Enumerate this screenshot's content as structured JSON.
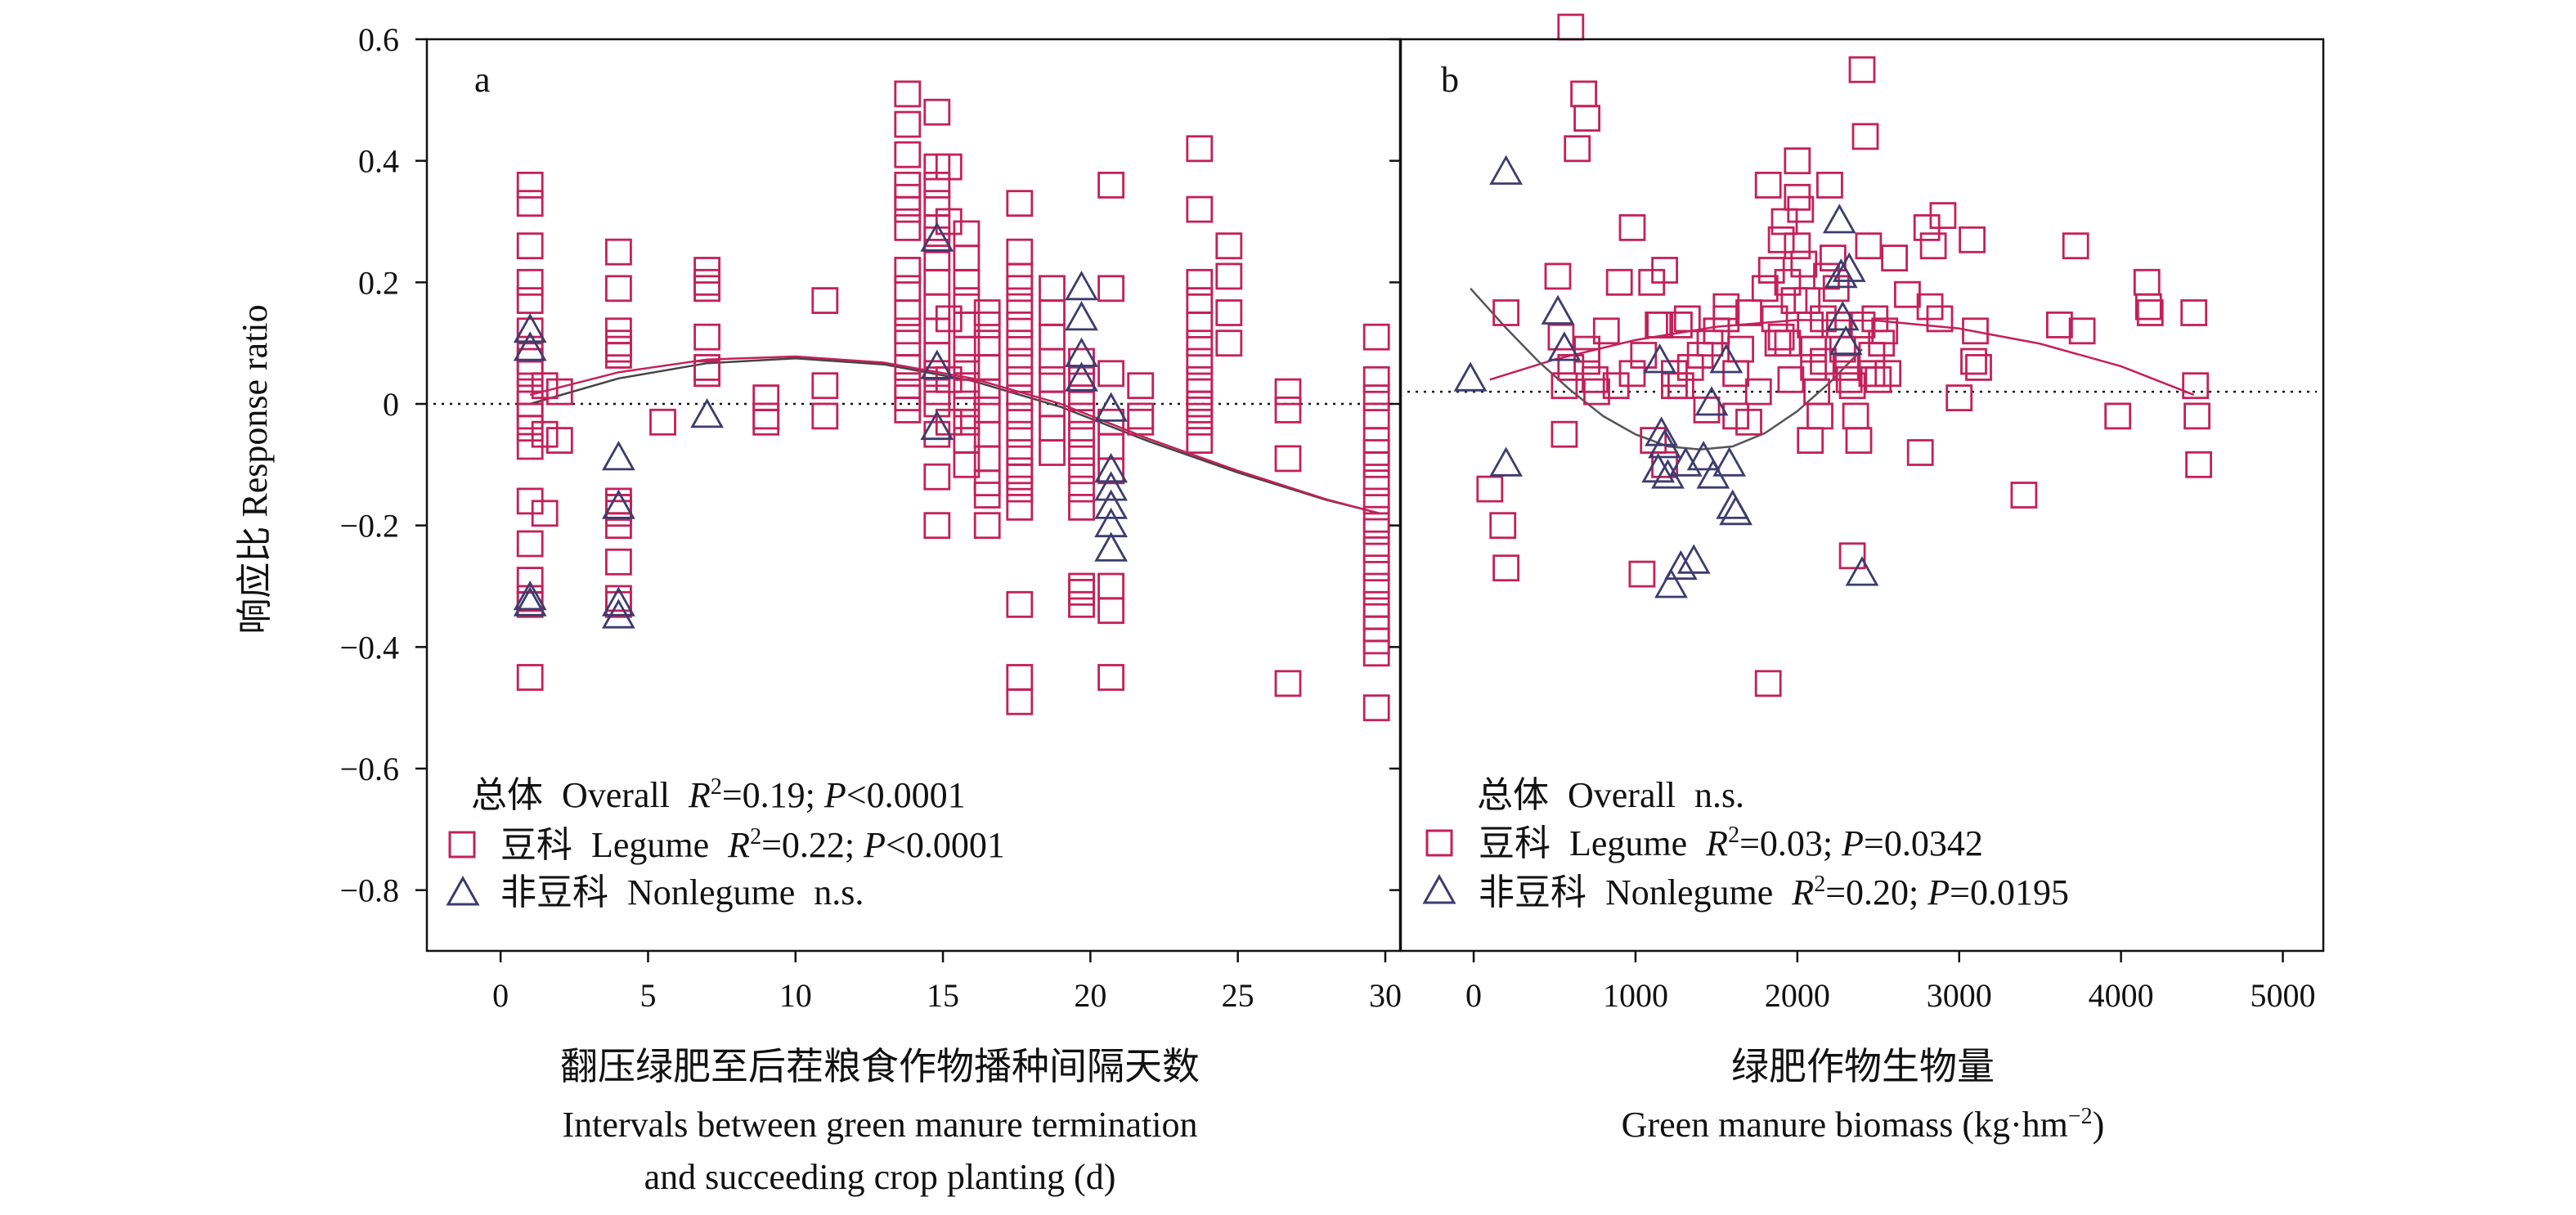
{
  "chart_data": [
    {
      "type": "scatter",
      "panel_label": "a",
      "xlabel_cn": "翻压绿肥至后茬粮食作物播种间隔天数",
      "xlabel_en_1": "Intervals between green manure termination",
      "xlabel_en_2": "and succeeding crop planting (d)",
      "ylabel": "响应比 Response ratio",
      "xlim": [
        -2.5,
        30.5
      ],
      "ylim": [
        -0.9,
        0.6
      ],
      "xticks": [
        0,
        5,
        10,
        15,
        20,
        25,
        30
      ],
      "yticks": [
        -0.8,
        -0.6,
        -0.4,
        -0.2,
        0,
        0.2,
        0.4,
        0.6
      ],
      "xtick_labels": [
        "0",
        "5",
        "10",
        "15",
        "20",
        "25",
        "30"
      ],
      "ytick_labels": [
        "−0.8",
        "−0.6",
        "−0.4",
        "−0.2",
        "0",
        "0.2",
        "0.4",
        "0.6"
      ],
      "grid": false,
      "reference_line_y": 0,
      "legend": {
        "overall": {
          "cn": "总体",
          "en": "Overall",
          "stat_r2": "=0.19; ",
          "stat_p": "<0.0001"
        },
        "legume": {
          "cn": "豆科",
          "en": "Legume",
          "stat_r2": "=0.22; ",
          "stat_p": "<0.0001"
        },
        "nonlegume": {
          "cn": "非豆科",
          "en": "Nonlegume",
          "stat_text": "n.s."
        }
      },
      "fits": {
        "overall": {
          "x": [
            1,
            4,
            7,
            10,
            13,
            16,
            19,
            22,
            25,
            28,
            29.8
          ],
          "y": [
            0.0,
            0.042,
            0.067,
            0.075,
            0.065,
            0.038,
            -0.005,
            -0.062,
            -0.113,
            -0.158,
            -0.18
          ]
        },
        "legume": {
          "x": [
            1,
            4,
            7,
            10,
            13,
            16,
            19,
            22,
            25,
            28,
            29.8
          ],
          "y": [
            0.015,
            0.052,
            0.073,
            0.078,
            0.068,
            0.042,
            0.0,
            -0.058,
            -0.11,
            -0.157,
            -0.18
          ]
        }
      },
      "series": [
        {
          "name": "豆科 Legume",
          "marker": "square",
          "color": "#c4205a",
          "x": [
            1,
            1,
            1,
            1,
            1,
            1,
            1,
            1,
            1,
            1,
            1,
            1,
            1,
            1,
            1,
            1,
            1,
            1,
            1,
            1,
            1.5,
            1.5,
            1.5,
            2,
            2,
            4,
            4,
            4,
            4,
            4,
            4,
            4,
            4,
            4,
            4,
            4,
            4,
            4,
            4,
            5.5,
            7,
            7,
            7,
            7,
            7,
            7,
            9,
            9,
            9,
            11,
            11,
            11,
            13.8,
            13.8,
            13.8,
            13.8,
            13.8,
            13.8,
            13.8,
            13.8,
            13.8,
            13.8,
            13.8,
            13.8,
            13.8,
            13.8,
            13.8,
            13.8,
            14.8,
            14.8,
            14.8,
            14.8,
            14.8,
            14.8,
            14.8,
            14.8,
            14.8,
            14.8,
            14.8,
            14.8,
            14.8,
            14.8,
            14.8,
            14.8,
            14.8,
            15.2,
            15.2,
            15.2,
            15.2,
            15.2,
            15.8,
            15.8,
            15.8,
            15.8,
            15.8,
            15.8,
            15.8,
            15.8,
            15.8,
            15.8,
            15.8,
            15.8,
            16.5,
            16.5,
            16.5,
            16.5,
            16.5,
            16.5,
            16.5,
            16.5,
            16.5,
            16.5,
            16.5,
            17.6,
            17.6,
            17.6,
            17.6,
            17.6,
            17.6,
            17.6,
            17.6,
            17.6,
            17.6,
            17.6,
            17.6,
            17.6,
            17.6,
            17.6,
            17.6,
            17.6,
            17.6,
            17.6,
            17.6,
            18.7,
            18.7,
            18.7,
            18.7,
            18.7,
            18.7,
            18.7,
            18.7,
            19.7,
            19.7,
            19.7,
            19.7,
            19.7,
            19.7,
            19.7,
            19.7,
            19.7,
            19.7,
            19.7,
            19.7,
            20.7,
            20.7,
            20.7,
            20.7,
            20.7,
            20.7,
            20.7,
            20.7,
            20.7,
            21.7,
            21.7,
            21.7,
            23.7,
            23.7,
            23.7,
            23.7,
            23.7,
            23.7,
            23.7,
            23.7,
            23.7,
            23.7,
            23.7,
            23.7,
            23.7,
            24.7,
            24.7,
            24.7,
            24.7,
            26.7,
            26.7,
            26.7,
            26.7,
            29.7,
            29.7,
            29.7,
            29.7,
            29.7,
            29.7,
            29.7,
            29.7,
            29.7,
            29.7,
            29.7,
            29.7,
            29.7,
            29.7,
            29.7,
            29.7,
            29.7,
            29.7,
            29.7,
            29.7
          ],
          "y": [
            0.36,
            0.33,
            0.26,
            0.2,
            0.17,
            0.12,
            0.09,
            0.07,
            0.05,
            0.02,
            0.0,
            -0.02,
            -0.04,
            -0.07,
            -0.16,
            -0.23,
            -0.29,
            -0.32,
            -0.33,
            -0.45,
            0.03,
            -0.05,
            -0.18,
            0.02,
            -0.06,
            0.25,
            0.19,
            0.12,
            0.08,
            -0.16,
            -0.17,
            -0.2,
            -0.26,
            -0.32,
            -0.33,
            0.1,
            0.09,
            -0.17,
            -0.18,
            -0.03,
            0.22,
            0.2,
            0.19,
            0.11,
            0.06,
            0.05,
            0.01,
            -0.02,
            -0.03,
            0.17,
            0.03,
            -0.02,
            0.51,
            0.46,
            0.41,
            0.36,
            0.34,
            0.32,
            0.29,
            0.22,
            0.19,
            0.15,
            0.12,
            0.1,
            0.06,
            0.03,
            0.01,
            -0.01,
            0.48,
            0.39,
            0.36,
            0.33,
            0.29,
            0.27,
            0.24,
            0.2,
            0.16,
            0.12,
            0.08,
            0.05,
            0.02,
            0.0,
            -0.05,
            -0.12,
            -0.2,
            0.39,
            0.3,
            0.14,
            0.04,
            -0.03,
            0.28,
            0.24,
            0.2,
            0.17,
            0.13,
            0.09,
            0.06,
            0.03,
            0.0,
            -0.03,
            -0.06,
            -0.1,
            0.15,
            0.13,
            0.1,
            0.06,
            0.02,
            -0.01,
            -0.05,
            -0.09,
            -0.13,
            -0.15,
            -0.2,
            0.33,
            0.25,
            0.21,
            0.19,
            0.16,
            0.13,
            0.1,
            0.07,
            0.04,
            0.01,
            -0.02,
            -0.05,
            -0.08,
            -0.11,
            -0.14,
            -0.17,
            -0.33,
            -0.45,
            -0.49,
            -0.12,
            0.19,
            0.15,
            0.11,
            0.07,
            0.04,
            0.0,
            -0.04,
            -0.08,
            0.07,
            0.04,
            0.01,
            -0.02,
            -0.05,
            -0.08,
            -0.11,
            -0.14,
            -0.17,
            -0.3,
            -0.31,
            -0.33,
            0.36,
            0.19,
            0.05,
            -0.03,
            -0.07,
            -0.11,
            -0.3,
            -0.34,
            -0.45,
            0.03,
            -0.02,
            -0.03,
            0.42,
            0.32,
            0.2,
            0.17,
            0.13,
            0.1,
            0.07,
            0.04,
            0.02,
            0.0,
            -0.01,
            -0.03,
            -0.06,
            0.26,
            0.21,
            0.15,
            0.1,
            0.02,
            -0.01,
            -0.09,
            -0.46,
            0.11,
            0.04,
            0.01,
            -0.02,
            -0.06,
            -0.08,
            -0.1,
            -0.13,
            -0.16,
            -0.19,
            -0.21,
            -0.24,
            -0.27,
            -0.3,
            -0.33,
            -0.35,
            -0.37,
            -0.39,
            -0.41,
            -0.5
          ]
        },
        {
          "name": "非豆科 Nonlegume",
          "marker": "triangle",
          "color": "#3c3c6e",
          "x": [
            1,
            1,
            1,
            1,
            4,
            4,
            4,
            4,
            7,
            14.8,
            14.8,
            14.8,
            19.7,
            19.7,
            19.7,
            19.7,
            20.7,
            20.7,
            20.7,
            20.7,
            20.7,
            20.7
          ],
          "y": [
            0.12,
            0.09,
            -0.32,
            -0.33,
            -0.09,
            -0.17,
            -0.33,
            -0.35,
            -0.02,
            0.27,
            0.06,
            -0.04,
            0.19,
            0.14,
            0.08,
            0.04,
            -0.01,
            -0.11,
            -0.14,
            -0.17,
            -0.2,
            -0.24
          ]
        }
      ]
    },
    {
      "type": "scatter",
      "panel_label": "b",
      "xlabel_cn": "绿肥作物生物量",
      "xlabel_en": "Green manure biomass (kg·hm",
      "xlabel_exp": "−2",
      "xlabel_close": ")",
      "xlim": [
        -450,
        5250
      ],
      "ylim": [
        -0.9,
        0.6
      ],
      "xticks": [
        0,
        1000,
        2000,
        3000,
        4000,
        5000
      ],
      "yticks": [
        -0.8,
        -0.6,
        -0.4,
        -0.2,
        0,
        0.2,
        0.4,
        0.6
      ],
      "xtick_labels": [
        "0",
        "1000",
        "2000",
        "3000",
        "4000",
        "5000"
      ],
      "grid": false,
      "reference_line_y": 0.02,
      "legend": {
        "overall": {
          "cn": "总体",
          "en": "Overall",
          "stat_text": "n.s."
        },
        "legume": {
          "cn": "豆科",
          "en": "Legume",
          "stat_r2": "=0.03; ",
          "stat_p": "=0.0342"
        },
        "nonlegume": {
          "cn": "非豆科",
          "en": "Nonlegume",
          "stat_r2": "=0.20; ",
          "stat_p": "=0.0195"
        }
      },
      "fits": {
        "legume": {
          "x": [
            100,
            500,
            1000,
            1500,
            2000,
            2500,
            3000,
            3500,
            4000,
            4450
          ],
          "y": [
            0.04,
            0.073,
            0.105,
            0.127,
            0.138,
            0.137,
            0.124,
            0.099,
            0.062,
            0.015
          ]
        },
        "nonlegume": {
          "x": [
            -20,
            200,
            400,
            600,
            800,
            1000,
            1200,
            1400,
            1600,
            1800,
            2000,
            2200,
            2400
          ],
          "y": [
            0.19,
            0.125,
            0.07,
            0.022,
            -0.02,
            -0.05,
            -0.07,
            -0.075,
            -0.07,
            -0.048,
            -0.012,
            0.035,
            0.09
          ]
        }
      },
      "series": [
        {
          "name": "豆科 Legume",
          "marker": "square",
          "color": "#c4205a",
          "x": [
            600,
            700,
            680,
            640,
            560,
            520,
            560,
            540,
            600,
            760,
            700,
            980,
            900,
            1100,
            1150,
            1180,
            1140,
            1050,
            1180,
            1270,
            1320,
            1340,
            1400,
            1460,
            1500,
            1560,
            1620,
            1700,
            1760,
            1800,
            1820,
            1840,
            1860,
            1880,
            1900,
            1900,
            1920,
            1940,
            1960,
            1980,
            2000,
            2000,
            2000,
            2020,
            2040,
            2060,
            2080,
            2100,
            2100,
            2120,
            2140,
            2160,
            2180,
            2200,
            2220,
            2240,
            2260,
            2280,
            2300,
            2320,
            2340,
            2360,
            2380,
            2400,
            2420,
            2440,
            2460,
            2500,
            2520,
            2540,
            2560,
            2600,
            2680,
            2760,
            2800,
            2820,
            2840,
            2880,
            2900,
            3080,
            3100,
            3120,
            3400,
            3620,
            3720,
            3760,
            3980,
            4160,
            4170,
            4180,
            4450,
            4460,
            4470,
            4480,
            1820,
            2080,
            2340,
            1940,
            2160,
            2480,
            1040,
            1110,
            1240,
            1280,
            980,
            1440,
            1620,
            1700,
            880,
            180,
            200,
            100,
            200,
            700,
            750,
            820,
            1500,
            1560,
            1650,
            1240,
            2400,
            2460,
            3000,
            3090
          ],
          "y": [
            0.62,
            0.47,
            0.51,
            0.42,
            0.03,
            0.21,
            -0.05,
            0.11,
            0.06,
            0.02,
            0.09,
            0.29,
            0.2,
            0.2,
            0.13,
            0.22,
            0.13,
            0.08,
            -0.1,
            0.13,
            0.14,
            0.06,
            0.08,
            0.1,
            0.12,
            0.16,
            0.05,
            0.15,
            0.02,
            0.19,
            0.36,
            0.22,
            0.14,
            0.1,
            0.27,
            0.11,
            0.3,
            0.2,
            0.04,
            0.17,
            0.4,
            0.34,
            0.26,
            0.32,
            0.23,
            0.17,
            0.13,
            0.09,
            0.06,
            0.02,
            -0.02,
            0.14,
            0.21,
            0.36,
            0.24,
            0.19,
            0.13,
            0.09,
            0.06,
            0.04,
            0.03,
            -0.02,
            -0.06,
            0.55,
            0.44,
            0.26,
            0.08,
            0.04,
            0.1,
            0.12,
            0.05,
            0.24,
            0.18,
            -0.08,
            0.29,
            0.16,
            0.26,
            0.14,
            0.31,
            0.27,
            0.12,
            0.06,
            -0.15,
            0.13,
            0.26,
            0.12,
            -0.02,
            0.2,
            0.16,
            0.15,
            0.15,
            0.03,
            -0.02,
            -0.1,
            -0.46,
            -0.06,
            -0.25,
            0.1,
            0.07,
            0.14,
            -0.28,
            -0.06,
            0.05,
            0.03,
            0.05,
            -0.01,
            -0.02,
            -0.03,
            0.03,
            -0.2,
            -0.27,
            -0.14,
            0.15,
            0.07,
            0.04,
            0.12,
            0.12,
            0.14,
            0.09,
            0.03,
            0.13,
            0.05,
            0.01,
            0.07
          ]
        },
        {
          "name": "非豆科 Nonlegume",
          "marker": "triangle",
          "color": "#3c3c6e",
          "x": [
            200,
            -20,
            520,
            560,
            1150,
            1160,
            1180,
            1200,
            1220,
            1280,
            1310,
            1360,
            1420,
            1470,
            1480,
            1560,
            1580,
            1600,
            1620,
            2260,
            2270,
            2280,
            2300,
            2320,
            2400,
            200,
            1140
          ],
          "y": [
            0.38,
            0.04,
            0.15,
            0.09,
            0.07,
            -0.05,
            -0.07,
            -0.12,
            -0.3,
            -0.27,
            -0.1,
            -0.26,
            -0.09,
            0.0,
            -0.12,
            0.07,
            -0.1,
            -0.17,
            -0.18,
            0.3,
            0.21,
            0.14,
            0.1,
            0.22,
            -0.28,
            -0.1,
            -0.11
          ]
        }
      ]
    }
  ]
}
